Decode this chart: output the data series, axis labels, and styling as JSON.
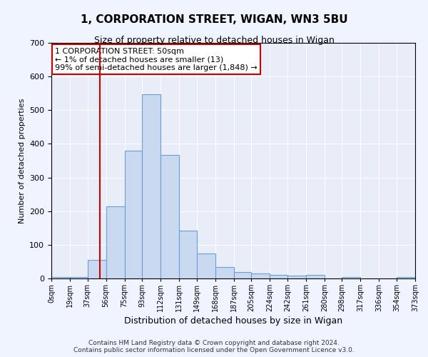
{
  "title": "1, CORPORATION STREET, WIGAN, WN3 5BU",
  "subtitle": "Size of property relative to detached houses in Wigan",
  "xlabel": "Distribution of detached houses by size in Wigan",
  "ylabel": "Number of detached properties",
  "bin_edges": [
    0,
    19,
    37,
    56,
    75,
    93,
    112,
    131,
    149,
    168,
    187,
    205,
    224,
    242,
    261,
    280,
    298,
    317,
    336,
    354,
    373
  ],
  "bin_labels": [
    "0sqm",
    "19sqm",
    "37sqm",
    "56sqm",
    "75sqm",
    "93sqm",
    "112sqm",
    "131sqm",
    "149sqm",
    "168sqm",
    "187sqm",
    "205sqm",
    "224sqm",
    "242sqm",
    "261sqm",
    "280sqm",
    "298sqm",
    "317sqm",
    "336sqm",
    "354sqm",
    "373sqm"
  ],
  "bar_heights": [
    5,
    5,
    55,
    215,
    380,
    548,
    368,
    143,
    75,
    33,
    20,
    15,
    10,
    8,
    10,
    0,
    5,
    0,
    0,
    5
  ],
  "bar_color": "#c9d9f0",
  "bar_edgecolor": "#6a9fd8",
  "vline_x": 50,
  "vline_color": "#cc0000",
  "ylim": [
    0,
    700
  ],
  "yticks": [
    0,
    100,
    200,
    300,
    400,
    500,
    600,
    700
  ],
  "annotation_title": "1 CORPORATION STREET: 50sqm",
  "annotation_line1": "← 1% of detached houses are smaller (13)",
  "annotation_line2": "99% of semi-detached houses are larger (1,848) →",
  "annotation_box_color": "#cc0000",
  "footer_line1": "Contains HM Land Registry data © Crown copyright and database right 2024.",
  "footer_line2": "Contains public sector information licensed under the Open Government Licence v3.0.",
  "bg_color": "#f0f4ff",
  "plot_bg_color": "#e8edf8"
}
